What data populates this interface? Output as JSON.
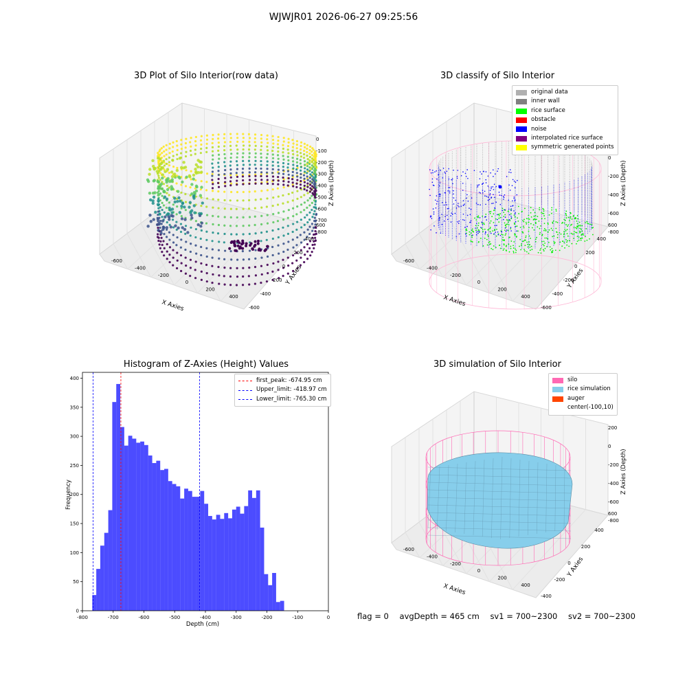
{
  "figure_title": "WJWJR01 2026-06-27 09:25:56",
  "footer": {
    "flag": "flag = 0",
    "avg_depth": "avgDepth = 465 cm",
    "sv1": "sv1 = 700~2300",
    "sv2": "sv2 = 700~2300"
  },
  "chart_data": [
    {
      "type": "scatter",
      "title": "3D Plot of Silo Interior(row data)",
      "xlabel": "X Axies",
      "ylabel": "Y Axies",
      "zlabel": "Z Axies (Depth)",
      "x_ticks": [
        "-600",
        "-400",
        "-200",
        "0",
        "200",
        "400"
      ],
      "y_ticks": [
        "-600",
        "-400",
        "-200",
        "0",
        "200",
        "400",
        "600"
      ],
      "z_ticks": [
        "0",
        "-100",
        "-200",
        "-300",
        "-400",
        "-500",
        "-600",
        "-700",
        "-800"
      ],
      "colormap": "viridis"
    },
    {
      "type": "scatter",
      "title": "3D classify of Silo Interior",
      "xlabel": "X Axies",
      "ylabel": "Y Axies",
      "zlabel": "Z Axies (Depth)",
      "x_ticks": [
        "-600",
        "-400",
        "-200",
        "0",
        "200",
        "400"
      ],
      "y_ticks": [
        "-600",
        "-400",
        "-200",
        "0",
        "200",
        "400",
        "600"
      ],
      "z_ticks": [
        "200",
        "0",
        "-200",
        "-400",
        "-600",
        "-800"
      ],
      "legend": [
        {
          "name": "original data",
          "color": "#b0b0b0"
        },
        {
          "name": "inner wall",
          "color": "#808080"
        },
        {
          "name": "rice surface",
          "color": "#00ff00"
        },
        {
          "name": "obstacle",
          "color": "#ff0000"
        },
        {
          "name": "noise",
          "color": "#0000ff"
        },
        {
          "name": "interpolated rice surface",
          "color": "#800080"
        },
        {
          "name": "symmetric generated points",
          "color": "#ffff00"
        }
      ],
      "legend_position": "top-right"
    },
    {
      "type": "bar",
      "title": "Histogram of Z-Axies (Height) Values",
      "xlabel": "Depth (cm)",
      "ylabel": "Frequency",
      "xlim": [
        -800,
        0
      ],
      "ylim": [
        0,
        410
      ],
      "x_ticks": [
        -800,
        -700,
        -600,
        -500,
        -400,
        -300,
        -200,
        -100,
        0
      ],
      "y_ticks": [
        0,
        50,
        100,
        150,
        200,
        250,
        300,
        350,
        400
      ],
      "bin_start": -768,
      "bin_width": 13,
      "values": [
        27,
        72,
        112,
        134,
        173,
        359,
        390,
        316,
        284,
        301,
        296,
        289,
        291,
        285,
        267,
        254,
        258,
        242,
        244,
        223,
        218,
        214,
        193,
        210,
        206,
        196,
        196,
        206,
        184,
        163,
        157,
        165,
        158,
        168,
        159,
        174,
        179,
        167,
        180,
        207,
        194,
        207,
        143,
        63,
        44,
        65,
        15,
        17
      ],
      "bar_color": "#0000ff",
      "vlines": [
        {
          "label": "first_peak: -674.95 cm",
          "x": -674.95,
          "color": "#ff0000"
        },
        {
          "label": "Upper_limit: -418.97 cm",
          "x": -418.97,
          "color": "#0000ff"
        },
        {
          "label": "Lower_limit: -765.30 cm",
          "x": -765.3,
          "color": "#0000ff"
        }
      ],
      "legend_position": "top-right"
    },
    {
      "type": "area",
      "title": "3D simulation of Silo Interior",
      "xlabel": "X Axies",
      "ylabel": "Y Axies",
      "zlabel": "Z Axies (Depth)",
      "x_ticks": [
        "-600",
        "-400",
        "-200",
        "0",
        "200",
        "400"
      ],
      "y_ticks": [
        "-400",
        "-200",
        "0",
        "200",
        "400",
        "600"
      ],
      "z_ticks": [
        "200",
        "0",
        "-200",
        "-400",
        "-600",
        "-800"
      ],
      "legend": [
        {
          "name": "silo",
          "color": "#ff69b4"
        },
        {
          "name": "rice simulation",
          "color": "#87ceeb"
        },
        {
          "name": "auger",
          "color": "#ff4500"
        },
        {
          "name": "center(-100,10)",
          "color": ""
        }
      ],
      "legend_position": "top-right"
    }
  ]
}
